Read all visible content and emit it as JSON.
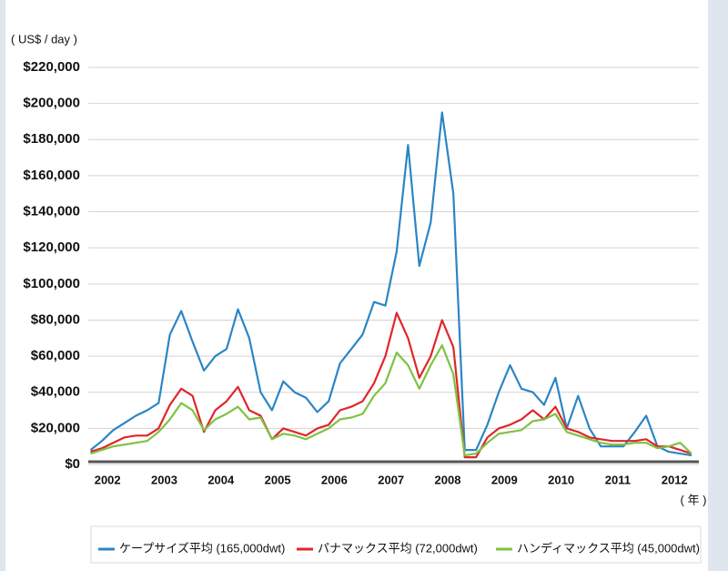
{
  "chart_data": {
    "type": "line",
    "y_axis_label": "( US$ / day )",
    "x_axis_label": "( 年 )",
    "x": [
      2002.2,
      2002.4,
      2002.6,
      2002.8,
      2003.0,
      2003.2,
      2003.4,
      2003.6,
      2003.8,
      2004.0,
      2004.2,
      2004.4,
      2004.6,
      2004.8,
      2005.0,
      2005.2,
      2005.4,
      2005.6,
      2005.8,
      2006.0,
      2006.2,
      2006.4,
      2006.6,
      2006.8,
      2007.0,
      2007.2,
      2007.4,
      2007.6,
      2007.8,
      2008.0,
      2008.2,
      2008.4,
      2008.6,
      2008.8,
      2009.0,
      2009.2,
      2009.4,
      2009.6,
      2009.8,
      2010.0,
      2010.2,
      2010.4,
      2010.6,
      2010.8,
      2011.0,
      2011.2,
      2011.4,
      2011.6,
      2011.8,
      2012.0,
      2012.2,
      2012.4,
      2012.6,
      2012.8
    ],
    "xlim": [
      2002.16,
      2012.93
    ],
    "xticks": [
      2002,
      2003,
      2004,
      2005,
      2006,
      2007,
      2008,
      2009,
      2010,
      2011,
      2012
    ],
    "ylim": [
      0,
      220000
    ],
    "yticks": [
      {
        "value": 0,
        "label": "$0"
      },
      {
        "value": 20000,
        "label": "$20,000"
      },
      {
        "value": 40000,
        "label": "$40,000"
      },
      {
        "value": 60000,
        "label": "$60,000"
      },
      {
        "value": 80000,
        "label": "$80,000"
      },
      {
        "value": 100000,
        "label": "$100,000"
      },
      {
        "value": 120000,
        "label": "$120,000"
      },
      {
        "value": 140000,
        "label": "$140,000"
      },
      {
        "value": 160000,
        "label": "$160,000"
      },
      {
        "value": 180000,
        "label": "$180,000"
      },
      {
        "value": 200000,
        "label": "$200,000"
      },
      {
        "value": 220000,
        "label": "$220,000"
      }
    ],
    "grid": true,
    "legend": "bottom",
    "series": [
      {
        "name": "ケープサイズ平均 (165,000dwt)",
        "color": "#2b86c5",
        "values": [
          8000,
          13000,
          19000,
          23000,
          27000,
          30000,
          34000,
          72000,
          85000,
          68000,
          52000,
          60000,
          64000,
          86000,
          70000,
          40000,
          30000,
          46000,
          40000,
          37000,
          29000,
          35000,
          56000,
          64000,
          72000,
          90000,
          88000,
          118000,
          177000,
          110000,
          134000,
          195000,
          150000,
          8000,
          8000,
          22000,
          40000,
          55000,
          42000,
          40000,
          33000,
          48000,
          20000,
          38000,
          20000,
          10000,
          10000,
          10000,
          18000,
          27000,
          10000,
          7000,
          6000,
          5000
        ]
      },
      {
        "name": "パナマックス平均 (72,000dwt)",
        "color": "#e0262b",
        "values": [
          7000,
          9000,
          12000,
          15000,
          16000,
          16000,
          20000,
          33000,
          42000,
          38000,
          18000,
          30000,
          35000,
          43000,
          30000,
          27000,
          14000,
          20000,
          18000,
          16000,
          20000,
          22000,
          30000,
          32000,
          35000,
          45000,
          60000,
          84000,
          70000,
          48000,
          60000,
          80000,
          65000,
          4000,
          4000,
          15000,
          20000,
          22000,
          25000,
          30000,
          25000,
          32000,
          20000,
          18000,
          15000,
          14000,
          13000,
          13000,
          13000,
          14000,
          10000,
          10000,
          8000,
          6000
        ]
      },
      {
        "name": "ハンディマックス平均 (45,000dwt)",
        "color": "#7fc241",
        "values": [
          6000,
          8000,
          10000,
          11000,
          12000,
          13000,
          18000,
          25000,
          34000,
          30000,
          19000,
          25000,
          28000,
          32000,
          25000,
          26000,
          14000,
          17000,
          16000,
          14000,
          17000,
          20000,
          25000,
          26000,
          28000,
          38000,
          45000,
          62000,
          55000,
          42000,
          55000,
          66000,
          50000,
          5000,
          6000,
          12000,
          17000,
          18000,
          19000,
          24000,
          25000,
          28000,
          18000,
          16000,
          14000,
          12000,
          11000,
          11000,
          12000,
          12000,
          9000,
          10000,
          12000,
          6000
        ]
      }
    ]
  }
}
